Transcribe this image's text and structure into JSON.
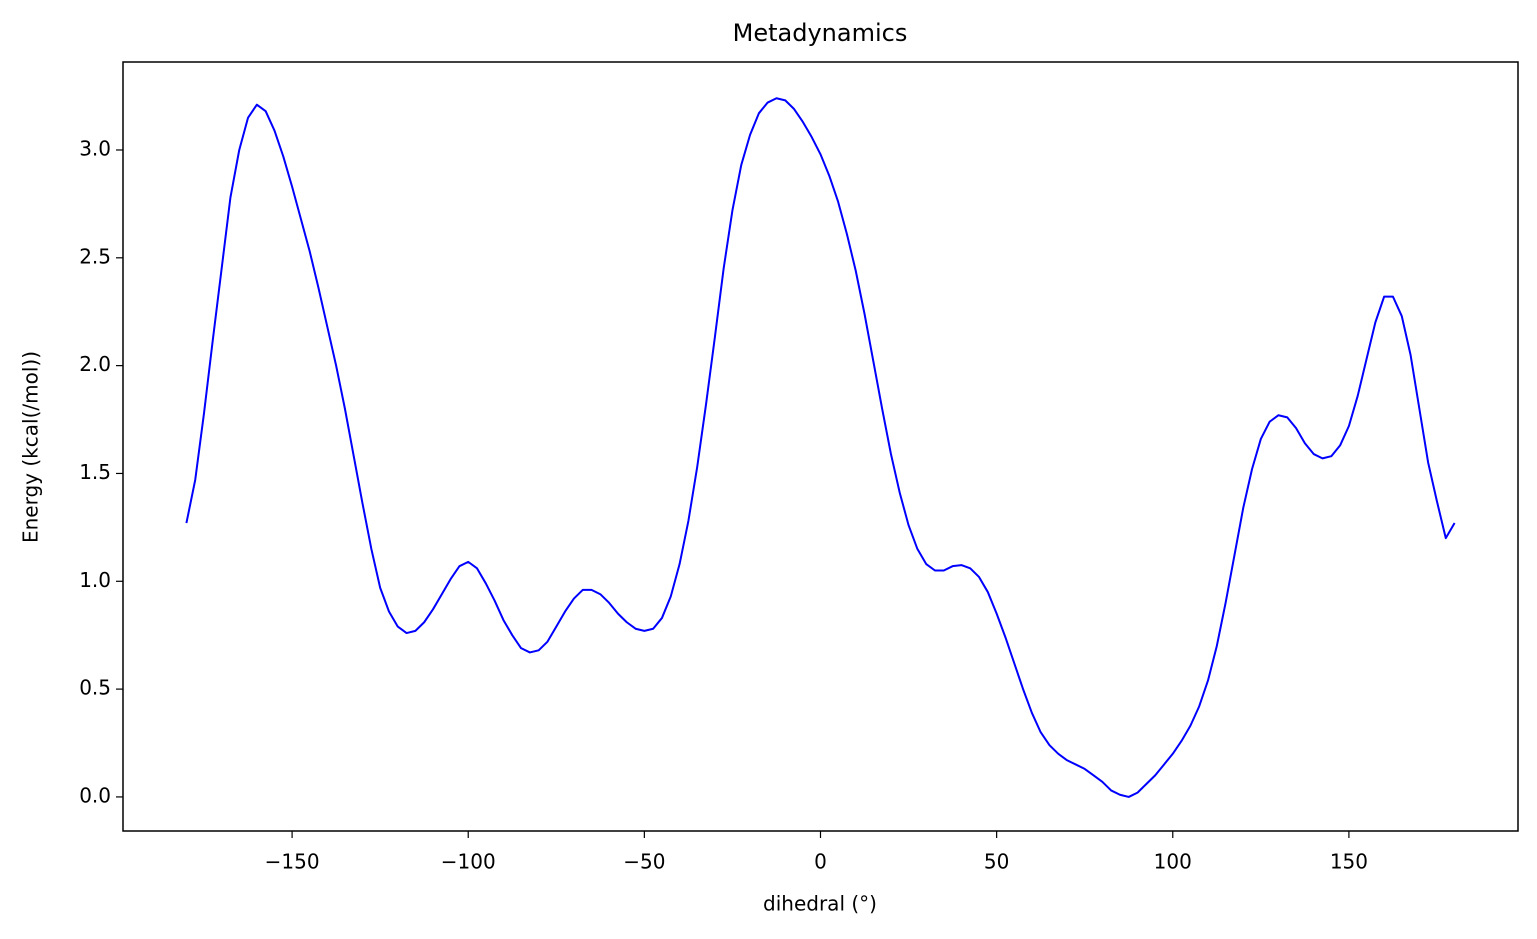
{
  "chart_data": {
    "type": "line",
    "title": "Metadynamics",
    "xlabel": "dihedral (°)",
    "ylabel": "Energy (kcal(/mol))",
    "xlim": [
      -198,
      198
    ],
    "ylim": [
      -0.158,
      3.408
    ],
    "xticks": [
      {
        "value": -150,
        "label": "−150"
      },
      {
        "value": -100,
        "label": "−100"
      },
      {
        "value": -50,
        "label": "−50"
      },
      0,
      50,
      100,
      150
    ],
    "yticks": [
      {
        "value": 0,
        "label": "0.0"
      },
      0.5,
      {
        "value": 1,
        "label": "1.0"
      },
      1.5,
      {
        "value": 2,
        "label": "2.0"
      },
      2.5,
      {
        "value": 3,
        "label": "3.0"
      }
    ],
    "grid": false,
    "series": [
      {
        "color": "#0000ff",
        "x": [
          -180,
          -177.5,
          -175,
          -172.5,
          -170,
          -167.5,
          -165,
          -162.5,
          -160,
          -157.5,
          -155,
          -152.5,
          -150,
          -147.5,
          -145,
          -142.5,
          -140,
          -137.5,
          -135,
          -132.5,
          -130,
          -127.5,
          -125,
          -122.5,
          -120,
          -117.5,
          -115,
          -112.5,
          -110,
          -107.5,
          -105,
          -102.5,
          -100,
          -97.5,
          -95,
          -92.5,
          -90,
          -87.5,
          -85,
          -82.5,
          -80,
          -77.5,
          -75,
          -72.5,
          -70,
          -67.5,
          -65,
          -62.5,
          -60,
          -57.5,
          -55,
          -52.5,
          -50,
          -47.5,
          -45,
          -42.5,
          -40,
          -37.5,
          -35,
          -32.5,
          -30,
          -27.5,
          -25,
          -22.5,
          -20,
          -17.5,
          -15,
          -12.5,
          -10,
          -7.5,
          -5,
          -2.5,
          0,
          2.5,
          5,
          7.5,
          10,
          12.5,
          15,
          17.5,
          20,
          22.5,
          25,
          27.5,
          30,
          32.5,
          35,
          37.5,
          40,
          42.5,
          45,
          47.5,
          50,
          52.5,
          55,
          57.5,
          60,
          62.5,
          65,
          67.5,
          70,
          72.5,
          75,
          77.5,
          80,
          82.5,
          85,
          87.5,
          90,
          92.5,
          95,
          97.5,
          100,
          102.5,
          105,
          107.5,
          110,
          112.5,
          115,
          117.5,
          120,
          122.5,
          125,
          127.5,
          130,
          132.5,
          135,
          137.5,
          140,
          142.5,
          145,
          147.5,
          150,
          152.5,
          155,
          157.5,
          160,
          162.5,
          165,
          167.5,
          170,
          172.5,
          175,
          177.5,
          180
        ],
        "values": [
          1.27,
          1.47,
          1.78,
          2.12,
          2.45,
          2.78,
          3.0,
          3.15,
          3.21,
          3.18,
          3.09,
          2.97,
          2.83,
          2.68,
          2.53,
          2.36,
          2.18,
          2.0,
          1.8,
          1.58,
          1.36,
          1.15,
          0.97,
          0.86,
          0.79,
          0.76,
          0.77,
          0.81,
          0.87,
          0.94,
          1.01,
          1.07,
          1.09,
          1.06,
          0.99,
          0.91,
          0.82,
          0.75,
          0.69,
          0.67,
          0.68,
          0.72,
          0.79,
          0.86,
          0.92,
          0.96,
          0.96,
          0.94,
          0.9,
          0.85,
          0.81,
          0.78,
          0.77,
          0.78,
          0.83,
          0.93,
          1.08,
          1.28,
          1.53,
          1.82,
          2.13,
          2.45,
          2.72,
          2.93,
          3.07,
          3.17,
          3.22,
          3.24,
          3.23,
          3.19,
          3.13,
          3.06,
          2.98,
          2.88,
          2.76,
          2.61,
          2.44,
          2.24,
          2.02,
          1.8,
          1.59,
          1.41,
          1.26,
          1.15,
          1.08,
          1.05,
          1.05,
          1.07,
          1.075,
          1.06,
          1.02,
          0.95,
          0.85,
          0.74,
          0.62,
          0.5,
          0.39,
          0.3,
          0.24,
          0.2,
          0.17,
          0.15,
          0.13,
          0.1,
          0.07,
          0.03,
          0.01,
          0.0,
          0.02,
          0.06,
          0.1,
          0.15,
          0.2,
          0.26,
          0.33,
          0.42,
          0.54,
          0.7,
          0.9,
          1.12,
          1.34,
          1.52,
          1.66,
          1.74,
          1.77,
          1.76,
          1.71,
          1.64,
          1.59,
          1.57,
          1.58,
          1.63,
          1.72,
          1.86,
          2.03,
          2.2,
          2.32,
          2.32,
          2.23,
          2.05,
          1.8,
          1.55,
          1.37,
          1.2,
          1.27
        ]
      }
    ]
  }
}
